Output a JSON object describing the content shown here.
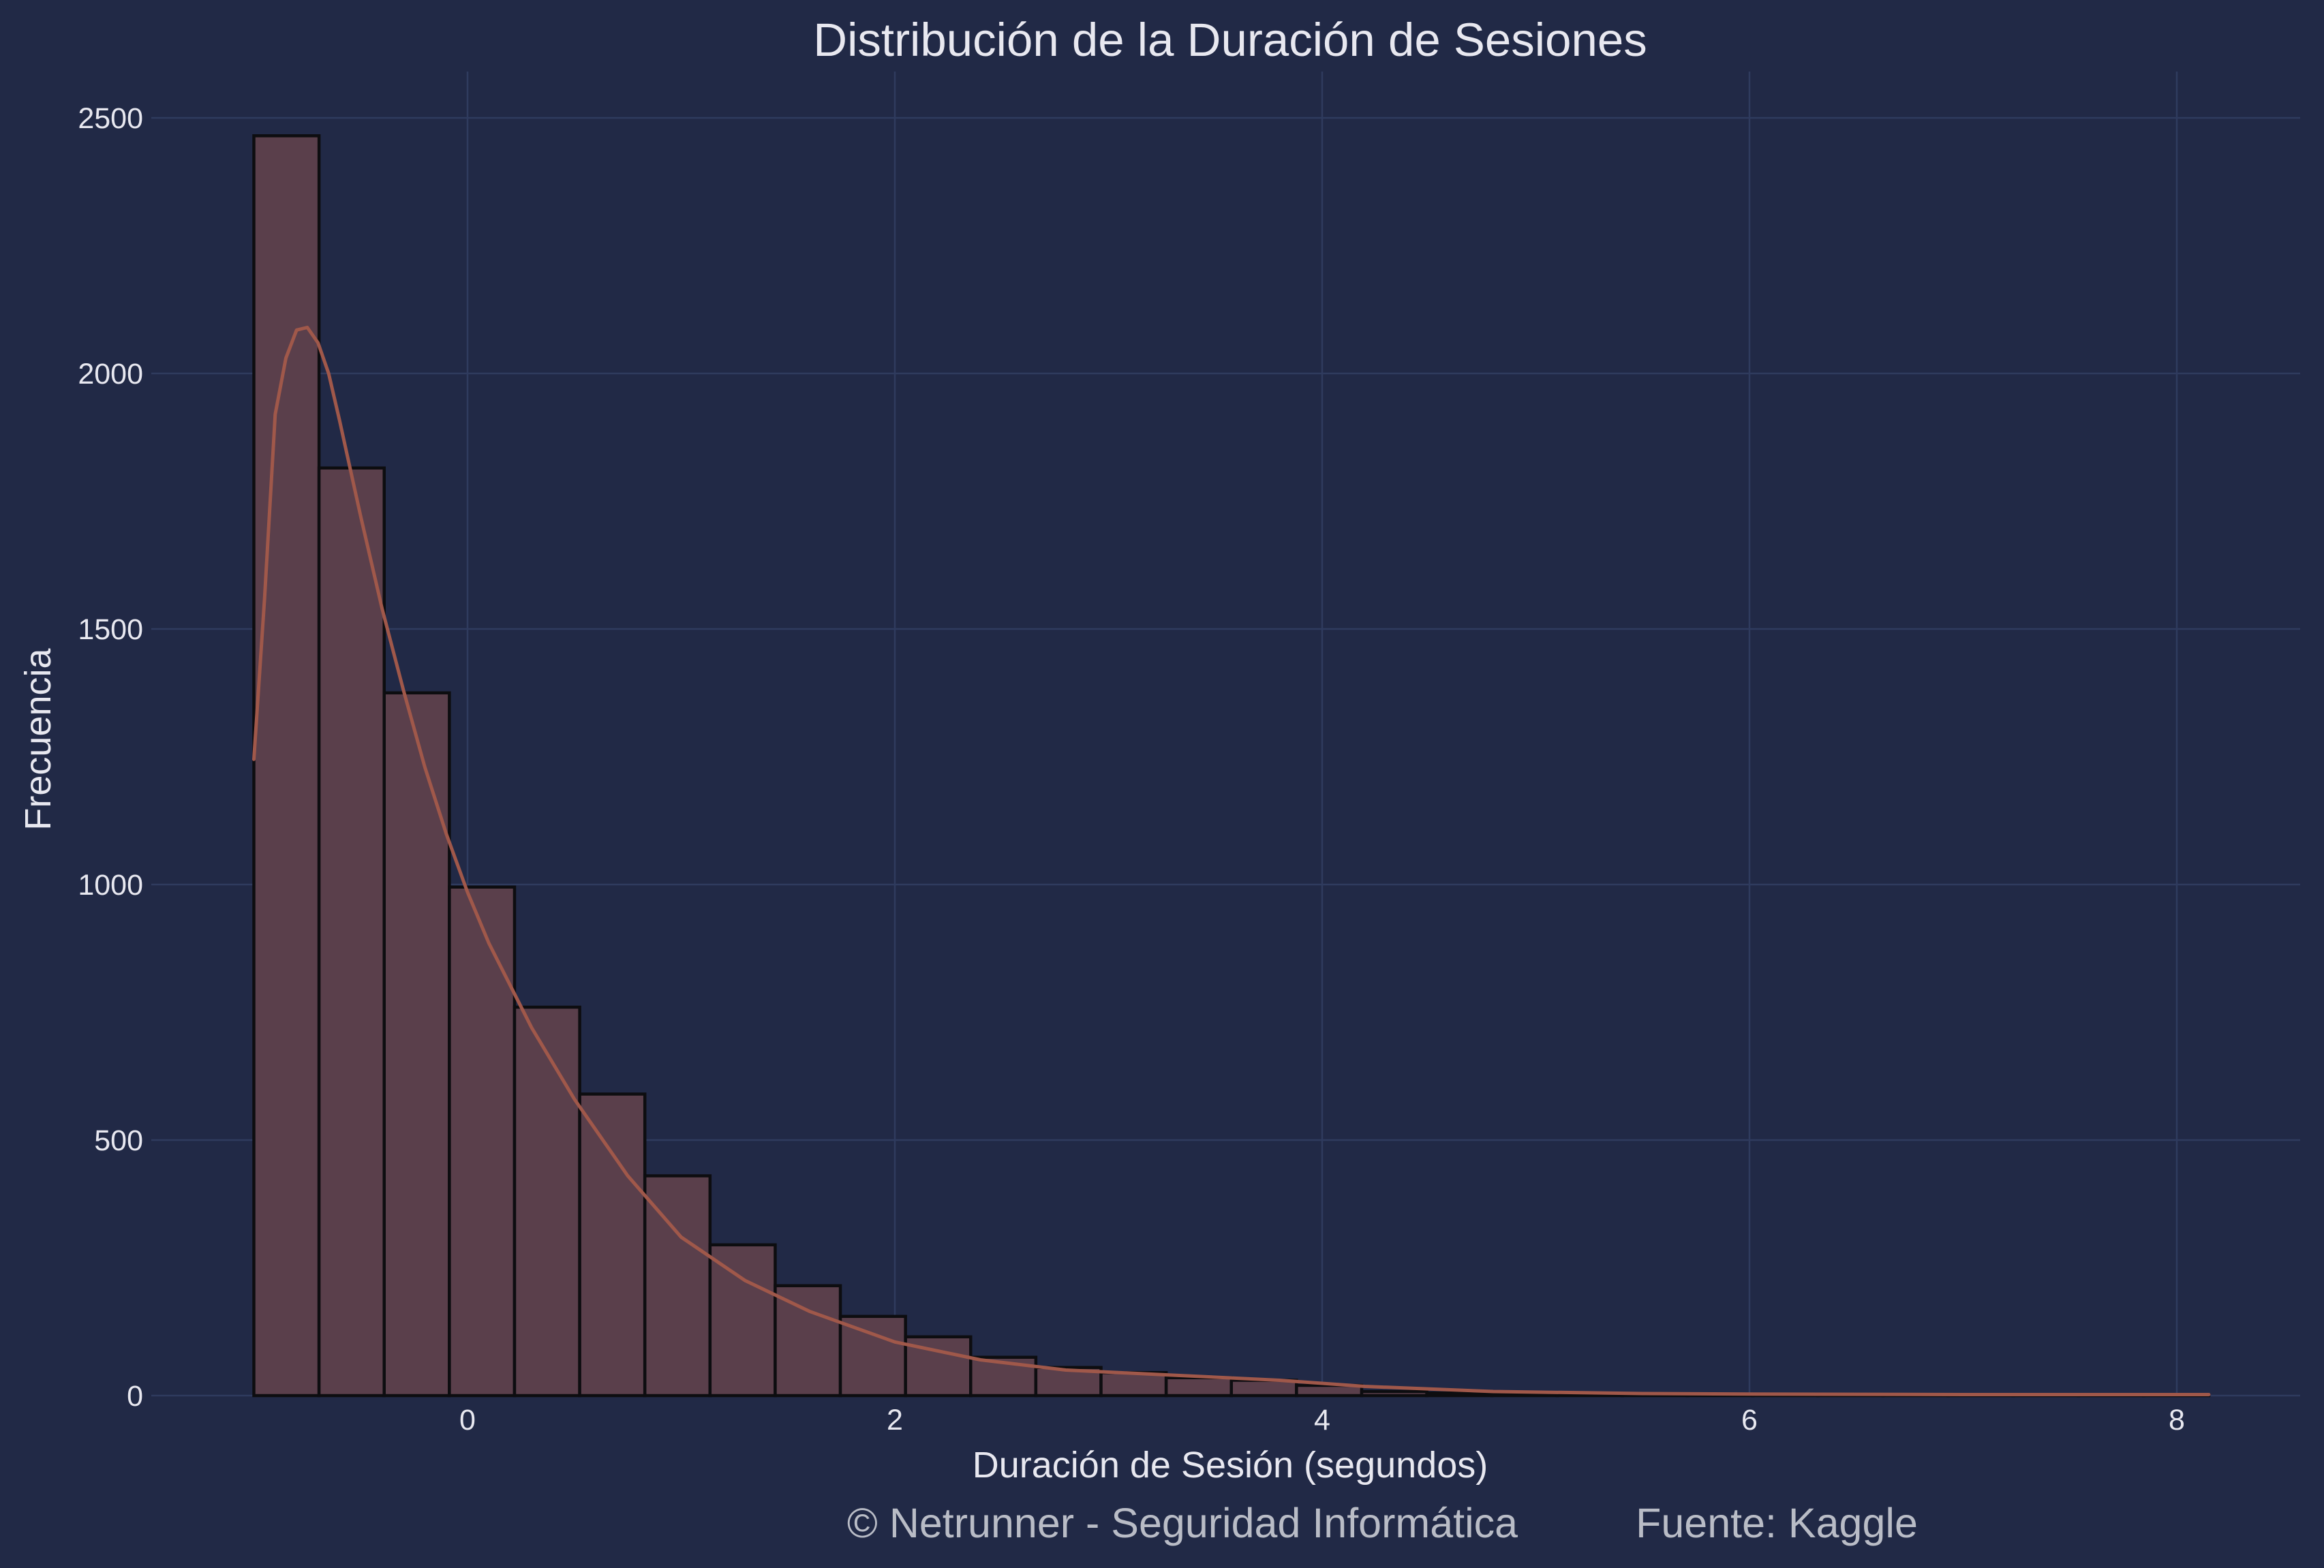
{
  "chart_data": {
    "type": "bar",
    "title": "Distribución de la Duración de Sesiones",
    "xlabel": "Duración de Sesión (segundos)",
    "ylabel": "Frecuencia",
    "xlim": [
      -1.5,
      8.5
    ],
    "ylim": [
      0,
      2600
    ],
    "xticks": [
      0,
      2,
      4,
      6,
      8
    ],
    "yticks": [
      0,
      500,
      1000,
      1500,
      2000,
      2500
    ],
    "grid": true,
    "bin_edges": [
      -1.0,
      -0.695,
      -0.39,
      -0.085,
      0.22,
      0.525,
      0.83,
      1.135,
      1.44,
      1.745,
      2.05,
      2.355,
      2.66,
      2.965,
      3.27,
      3.575,
      3.88,
      4.185,
      4.49,
      4.795,
      5.1,
      5.405,
      5.71,
      6.015,
      6.32,
      6.625,
      6.93,
      7.235,
      7.54,
      7.845,
      8.15
    ],
    "values": [
      2465,
      1815,
      1375,
      995,
      760,
      590,
      430,
      295,
      215,
      155,
      115,
      75,
      55,
      45,
      35,
      30,
      20,
      8,
      5,
      3,
      2,
      2,
      1,
      1,
      1,
      1,
      1,
      1,
      1,
      1
    ],
    "kde": {
      "x": [
        -1.0,
        -0.95,
        -0.9,
        -0.85,
        -0.8,
        -0.75,
        -0.7,
        -0.65,
        -0.6,
        -0.5,
        -0.4,
        -0.3,
        -0.2,
        -0.1,
        0.0,
        0.1,
        0.3,
        0.5,
        0.75,
        1.0,
        1.3,
        1.6,
        2.0,
        2.4,
        2.8,
        3.3,
        3.8,
        4.2,
        4.8,
        5.5,
        6.0,
        7.0,
        8.15
      ],
      "y": [
        1245,
        1560,
        1920,
        2030,
        2085,
        2090,
        2060,
        2000,
        1910,
        1720,
        1540,
        1380,
        1230,
        1100,
        985,
        885,
        720,
        580,
        430,
        310,
        225,
        165,
        105,
        70,
        50,
        40,
        30,
        18,
        8,
        4,
        3,
        2,
        2
      ]
    }
  },
  "footer": {
    "copyright": "© Netrunner - Seguridad Informática",
    "source": "Fuente: Kaggle"
  },
  "colors": {
    "background": "#212946",
    "grid": "#2f3b5e",
    "bar_fill": "#5a3f4b",
    "bar_edge": "#0d0d10",
    "kde_line": "#a0584a",
    "text": "#e8e8f0"
  }
}
